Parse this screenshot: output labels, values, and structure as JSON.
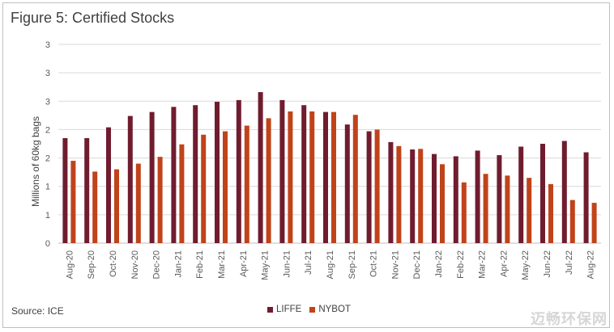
{
  "page": {
    "source": "Source: ICE",
    "watermark": "迈畅环保网"
  },
  "chart_data": {
    "type": "bar",
    "title": "Figure 5: Certified Stocks",
    "xlabel": "",
    "ylabel": "Millions of 60kg bags",
    "ylim": [
      0,
      3.5
    ],
    "ytick_labels": [
      "0",
      "1",
      "1",
      "2",
      "2",
      "3",
      "3",
      "3"
    ],
    "grid": true,
    "legend_position": "bottom",
    "categories": [
      "Aug-20",
      "Sep-20",
      "Oct-20",
      "Nov-20",
      "Dec-20",
      "Jan-21",
      "Feb-21",
      "Mar-21",
      "Apr-21",
      "May-21",
      "Jun-21",
      "Jul-21",
      "Aug-21",
      "Sep-21",
      "Oct-21",
      "Nov-21",
      "Dec-21",
      "Jan-22",
      "Feb-22",
      "Mar-22",
      "Apr-22",
      "May-22",
      "Jun-22",
      "Jul-22",
      "Aug-22"
    ],
    "series": [
      {
        "name": "LIFFE",
        "color": "#701c2f",
        "values": [
          1.85,
          1.85,
          2.04,
          2.24,
          2.31,
          2.4,
          2.43,
          2.49,
          2.52,
          2.66,
          2.52,
          2.43,
          2.31,
          2.09,
          1.97,
          1.78,
          1.65,
          1.57,
          1.53,
          1.63,
          1.55,
          1.7,
          1.75,
          1.8,
          1.6
        ]
      },
      {
        "name": "NYBOT",
        "color": "#c0431a",
        "values": [
          1.45,
          1.26,
          1.3,
          1.4,
          1.52,
          1.74,
          1.91,
          1.97,
          2.07,
          2.2,
          2.32,
          2.32,
          2.31,
          2.26,
          2.0,
          1.71,
          1.66,
          1.39,
          1.07,
          1.22,
          1.19,
          1.15,
          1.04,
          0.76,
          0.71
        ]
      }
    ]
  }
}
